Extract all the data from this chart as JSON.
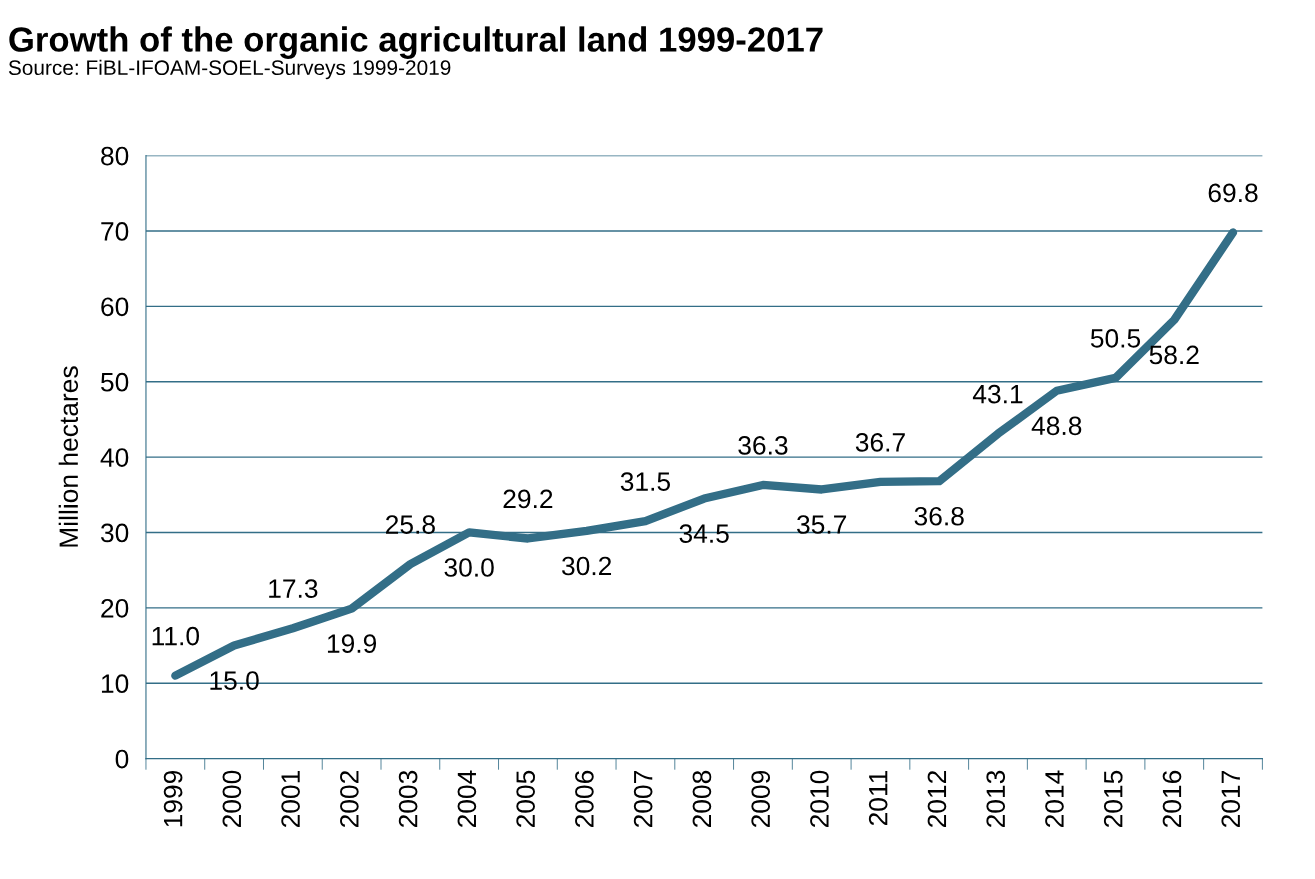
{
  "chart_data": {
    "type": "line",
    "title": "Growth of the organic agricultural land 1999-2017",
    "subtitle": "Source: FiBL-IFOAM-SOEL-Surveys 1999-2019",
    "ylabel": "Million hectares",
    "categories": [
      "1999",
      "2000",
      "2001",
      "2002",
      "2003",
      "2004",
      "2005",
      "2006",
      "2007",
      "2008",
      "2009",
      "2010",
      "2011",
      "2012",
      "2013",
      "2014",
      "2015",
      "2016",
      "2017"
    ],
    "series": [
      {
        "color": "#336e87",
        "values": [
          11.0,
          15.0,
          17.3,
          19.9,
          25.8,
          30.0,
          29.2,
          30.2,
          31.5,
          34.5,
          36.3,
          35.7,
          36.7,
          36.8,
          43.1,
          48.8,
          50.5,
          58.2,
          69.8
        ],
        "value_labels": [
          "11.0",
          "15.0",
          "17.3",
          "19.9",
          "25.8",
          "30.0",
          "29.2",
          "30.2",
          "31.5",
          "34.5",
          "36.3",
          "35.7",
          "36.7",
          "36.8",
          "43.1",
          "48.8",
          "50.5",
          "58.2",
          "69.8"
        ]
      }
    ],
    "ylim": [
      0,
      80
    ],
    "yticks": [
      0,
      10,
      20,
      30,
      40,
      50,
      60,
      70,
      80
    ],
    "grid": "y",
    "legend": false,
    "marker": "none",
    "line_style": "solid"
  }
}
